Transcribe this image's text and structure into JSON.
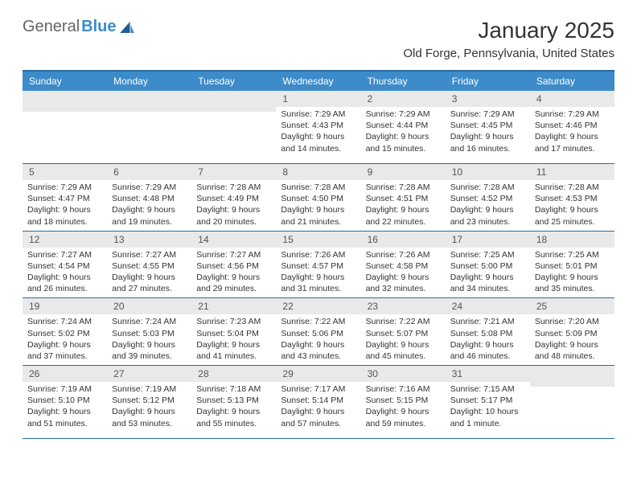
{
  "logo": {
    "part1": "General",
    "part2": "Blue"
  },
  "title": "January 2025",
  "location": "Old Forge, Pennsylvania, United States",
  "colors": {
    "header_bg": "#3d8bc9",
    "header_text": "#ffffff",
    "rule": "#2b6ca3",
    "daynum_bg": "#e9e9e9",
    "text": "#333333"
  },
  "day_headers": [
    "Sunday",
    "Monday",
    "Tuesday",
    "Wednesday",
    "Thursday",
    "Friday",
    "Saturday"
  ],
  "weeks": [
    [
      {
        "n": "",
        "lines": []
      },
      {
        "n": "",
        "lines": []
      },
      {
        "n": "",
        "lines": []
      },
      {
        "n": "1",
        "lines": [
          "Sunrise: 7:29 AM",
          "Sunset: 4:43 PM",
          "Daylight: 9 hours and 14 minutes."
        ]
      },
      {
        "n": "2",
        "lines": [
          "Sunrise: 7:29 AM",
          "Sunset: 4:44 PM",
          "Daylight: 9 hours and 15 minutes."
        ]
      },
      {
        "n": "3",
        "lines": [
          "Sunrise: 7:29 AM",
          "Sunset: 4:45 PM",
          "Daylight: 9 hours and 16 minutes."
        ]
      },
      {
        "n": "4",
        "lines": [
          "Sunrise: 7:29 AM",
          "Sunset: 4:46 PM",
          "Daylight: 9 hours and 17 minutes."
        ]
      }
    ],
    [
      {
        "n": "5",
        "lines": [
          "Sunrise: 7:29 AM",
          "Sunset: 4:47 PM",
          "Daylight: 9 hours and 18 minutes."
        ]
      },
      {
        "n": "6",
        "lines": [
          "Sunrise: 7:29 AM",
          "Sunset: 4:48 PM",
          "Daylight: 9 hours and 19 minutes."
        ]
      },
      {
        "n": "7",
        "lines": [
          "Sunrise: 7:28 AM",
          "Sunset: 4:49 PM",
          "Daylight: 9 hours and 20 minutes."
        ]
      },
      {
        "n": "8",
        "lines": [
          "Sunrise: 7:28 AM",
          "Sunset: 4:50 PM",
          "Daylight: 9 hours and 21 minutes."
        ]
      },
      {
        "n": "9",
        "lines": [
          "Sunrise: 7:28 AM",
          "Sunset: 4:51 PM",
          "Daylight: 9 hours and 22 minutes."
        ]
      },
      {
        "n": "10",
        "lines": [
          "Sunrise: 7:28 AM",
          "Sunset: 4:52 PM",
          "Daylight: 9 hours and 23 minutes."
        ]
      },
      {
        "n": "11",
        "lines": [
          "Sunrise: 7:28 AM",
          "Sunset: 4:53 PM",
          "Daylight: 9 hours and 25 minutes."
        ]
      }
    ],
    [
      {
        "n": "12",
        "lines": [
          "Sunrise: 7:27 AM",
          "Sunset: 4:54 PM",
          "Daylight: 9 hours and 26 minutes."
        ]
      },
      {
        "n": "13",
        "lines": [
          "Sunrise: 7:27 AM",
          "Sunset: 4:55 PM",
          "Daylight: 9 hours and 27 minutes."
        ]
      },
      {
        "n": "14",
        "lines": [
          "Sunrise: 7:27 AM",
          "Sunset: 4:56 PM",
          "Daylight: 9 hours and 29 minutes."
        ]
      },
      {
        "n": "15",
        "lines": [
          "Sunrise: 7:26 AM",
          "Sunset: 4:57 PM",
          "Daylight: 9 hours and 31 minutes."
        ]
      },
      {
        "n": "16",
        "lines": [
          "Sunrise: 7:26 AM",
          "Sunset: 4:58 PM",
          "Daylight: 9 hours and 32 minutes."
        ]
      },
      {
        "n": "17",
        "lines": [
          "Sunrise: 7:25 AM",
          "Sunset: 5:00 PM",
          "Daylight: 9 hours and 34 minutes."
        ]
      },
      {
        "n": "18",
        "lines": [
          "Sunrise: 7:25 AM",
          "Sunset: 5:01 PM",
          "Daylight: 9 hours and 35 minutes."
        ]
      }
    ],
    [
      {
        "n": "19",
        "lines": [
          "Sunrise: 7:24 AM",
          "Sunset: 5:02 PM",
          "Daylight: 9 hours and 37 minutes."
        ]
      },
      {
        "n": "20",
        "lines": [
          "Sunrise: 7:24 AM",
          "Sunset: 5:03 PM",
          "Daylight: 9 hours and 39 minutes."
        ]
      },
      {
        "n": "21",
        "lines": [
          "Sunrise: 7:23 AM",
          "Sunset: 5:04 PM",
          "Daylight: 9 hours and 41 minutes."
        ]
      },
      {
        "n": "22",
        "lines": [
          "Sunrise: 7:22 AM",
          "Sunset: 5:06 PM",
          "Daylight: 9 hours and 43 minutes."
        ]
      },
      {
        "n": "23",
        "lines": [
          "Sunrise: 7:22 AM",
          "Sunset: 5:07 PM",
          "Daylight: 9 hours and 45 minutes."
        ]
      },
      {
        "n": "24",
        "lines": [
          "Sunrise: 7:21 AM",
          "Sunset: 5:08 PM",
          "Daylight: 9 hours and 46 minutes."
        ]
      },
      {
        "n": "25",
        "lines": [
          "Sunrise: 7:20 AM",
          "Sunset: 5:09 PM",
          "Daylight: 9 hours and 48 minutes."
        ]
      }
    ],
    [
      {
        "n": "26",
        "lines": [
          "Sunrise: 7:19 AM",
          "Sunset: 5:10 PM",
          "Daylight: 9 hours and 51 minutes."
        ]
      },
      {
        "n": "27",
        "lines": [
          "Sunrise: 7:19 AM",
          "Sunset: 5:12 PM",
          "Daylight: 9 hours and 53 minutes."
        ]
      },
      {
        "n": "28",
        "lines": [
          "Sunrise: 7:18 AM",
          "Sunset: 5:13 PM",
          "Daylight: 9 hours and 55 minutes."
        ]
      },
      {
        "n": "29",
        "lines": [
          "Sunrise: 7:17 AM",
          "Sunset: 5:14 PM",
          "Daylight: 9 hours and 57 minutes."
        ]
      },
      {
        "n": "30",
        "lines": [
          "Sunrise: 7:16 AM",
          "Sunset: 5:15 PM",
          "Daylight: 9 hours and 59 minutes."
        ]
      },
      {
        "n": "31",
        "lines": [
          "Sunrise: 7:15 AM",
          "Sunset: 5:17 PM",
          "Daylight: 10 hours and 1 minute."
        ]
      },
      {
        "n": "",
        "lines": []
      }
    ]
  ]
}
